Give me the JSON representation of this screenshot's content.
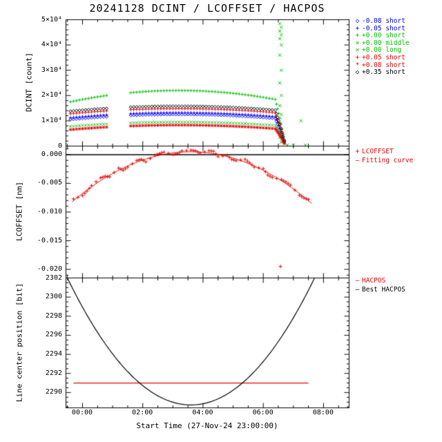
{
  "title": "20241128 DCINT / LCOFFSET / HACPOS",
  "x_axis": {
    "label": "Start Time (27-Nov-24 23:00:00)",
    "tick_labels": [
      "00:00",
      "02:00",
      "04:00",
      "06:00",
      "08:00"
    ],
    "tick_hours": [
      0,
      2,
      4,
      6,
      8
    ],
    "range_hours": [
      -0.55,
      8.85
    ]
  },
  "colors": {
    "blue": "#0000ff",
    "green": "#00c000",
    "red": "#e80000",
    "black": "#000000"
  },
  "chart_data": [
    {
      "type": "scatter",
      "ylabel": "DCINT [count]",
      "ylim": [
        0,
        50000
      ],
      "ytick_values": [
        0,
        10000,
        20000,
        30000,
        40000,
        50000
      ],
      "ytick_labels": [
        "0",
        "1×10⁴",
        "2×10⁴",
        "3×10⁴",
        "4×10⁴",
        "5×10⁴"
      ],
      "ytick_major": 10000,
      "ytick_minor": 2000,
      "x_default": [
        -0.4,
        0,
        0.4,
        0.8,
        1.6,
        2,
        2.4,
        2.8,
        3.2,
        3.6,
        4,
        4.4,
        4.8,
        5.2,
        5.6,
        6,
        6.4,
        6.55,
        6.7
      ],
      "series": [
        {
          "name": "-0.08 short",
          "color": "blue",
          "marker": "diamond",
          "densify": 3,
          "y": [
            10500,
            10920,
            11290,
            11610,
            12110,
            12280,
            12400,
            12480,
            12500,
            12480,
            12400,
            12280,
            12110,
            11880,
            11610,
            11290,
            10920,
            6500,
            1500
          ]
        },
        {
          "name": "-0.05 short",
          "color": "blue",
          "marker": "plus",
          "densify": 3,
          "y": [
            11200,
            11620,
            11990,
            12310,
            12810,
            12980,
            13100,
            13180,
            13200,
            13180,
            13100,
            12980,
            12810,
            12580,
            12310,
            11990,
            11620,
            7000,
            1800
          ]
        },
        {
          "name": "+0.00 short",
          "color": "green",
          "marker": "plus",
          "densify": 3,
          "y": [
            17500,
            18450,
            19280,
            20000,
            21110,
            21500,
            21780,
            21940,
            22000,
            21940,
            21780,
            21500,
            21110,
            20610,
            20000,
            19280,
            18450,
            11000,
            2500
          ]
        },
        {
          "name": "+0.00 middle",
          "color": "green",
          "marker": "cross",
          "densify": 0,
          "size": 2.8,
          "x": [
            6.55,
            6.6,
            6.55,
            6.6,
            6.55,
            6.6,
            6.55,
            6.6,
            6.55,
            6.6,
            6.55,
            6.6,
            6.55,
            6.6,
            6.55,
            6.6,
            6.8,
            7.0,
            7.25,
            7.4
          ],
          "y": [
            48500,
            47000,
            45500,
            44000,
            42500,
            40000,
            36000,
            30000,
            25000,
            20000,
            16000,
            12500,
            9000,
            6000,
            3500,
            1500,
            400,
            300,
            10000,
            350
          ]
        },
        {
          "name": "+0.00 long",
          "color": "green",
          "marker": "cross",
          "densify": 3,
          "y": [
            7800,
            8160,
            8470,
            8750,
            9170,
            9310,
            9420,
            9480,
            9500,
            9480,
            9420,
            9310,
            9170,
            8980,
            8750,
            8470,
            8160,
            5000,
            1200
          ]
        },
        {
          "name": "+0.05 short",
          "color": "red",
          "marker": "plus",
          "densify": 3,
          "y": [
            12800,
            13220,
            13590,
            13910,
            14410,
            14580,
            14700,
            14780,
            14800,
            14780,
            14700,
            14580,
            14410,
            14180,
            13910,
            13590,
            13220,
            8000,
            2000
          ]
        },
        {
          "name": "+0.08 short",
          "color": "red",
          "marker": "star",
          "densify": 3,
          "y": [
            6500,
            6880,
            7210,
            7500,
            7940,
            8100,
            8210,
            8280,
            8300,
            8280,
            8210,
            8100,
            7940,
            7740,
            7500,
            7210,
            6880,
            4200,
            1000
          ]
        },
        {
          "name": "+0.35 short",
          "color": "black",
          "marker": "diamond",
          "densify": 3,
          "y": [
            13800,
            14220,
            14590,
            14910,
            15410,
            15580,
            15700,
            15780,
            15800,
            15780,
            15700,
            15580,
            15410,
            15180,
            14910,
            14590,
            14220,
            8600,
            2100
          ]
        }
      ],
      "legend": [
        {
          "marker": "◇",
          "color": "blue",
          "label": "-0.08 short"
        },
        {
          "marker": "+",
          "color": "blue",
          "label": "-0.05 short"
        },
        {
          "marker": "+",
          "color": "green",
          "label": "+0.00 short"
        },
        {
          "marker": "×",
          "color": "green",
          "label": "+0.00 middle"
        },
        {
          "marker": "×",
          "color": "green",
          "label": "+0.00 long"
        },
        {
          "marker": "+",
          "color": "red",
          "label": "+0.05 short"
        },
        {
          "marker": "*",
          "color": "red",
          "label": "+0.08 short"
        },
        {
          "marker": "◇",
          "color": "black",
          "label": "+0.35 short"
        }
      ]
    },
    {
      "type": "scatter+line",
      "ylabel": "LCOFFSET [nm]",
      "ylim": [
        -0.0215,
        0.0015
      ],
      "ytick_values": [
        0,
        -0.005,
        -0.01,
        -0.015,
        -0.02
      ],
      "ytick_labels": [
        "0.000",
        "-0.005",
        "-0.010",
        "-0.015",
        "-0.020"
      ],
      "ytick_major": 0.005,
      "ytick_minor": 0.001,
      "series": [
        {
          "name": "zero line",
          "color": "black",
          "type": "hline",
          "y": 0,
          "t_range": [
            -0.55,
            8.85
          ],
          "width": 1.5
        },
        {
          "name": "LCOFFSET",
          "color": "red",
          "marker": "plus",
          "densify": 1,
          "maxgap": 0.4,
          "size": 2.5,
          "x": [
            -0.3,
            0,
            0.15,
            0.3,
            0.6,
            0.75,
            0.9,
            1.2,
            1.35,
            1.5,
            1.8,
            1.95,
            2.1,
            2.4,
            2.55,
            2.7,
            3.0,
            3.15,
            3.3,
            3.6,
            3.75,
            3.9,
            4.2,
            4.35,
            4.5,
            4.8,
            4.95,
            5.1,
            5.4,
            5.55,
            5.7,
            6.0,
            6.15,
            6.3,
            6.6,
            6.75,
            6.9,
            7.2,
            7.35,
            7.5,
            6.57
          ],
          "y": [
            -0.00772,
            -0.00716,
            -0.00637,
            -0.0054,
            -0.00404,
            -0.00375,
            -0.00388,
            -0.00233,
            -0.00273,
            -0.00217,
            -0.00101,
            -0.00082,
            -0.00126,
            -0.00011,
            0.00018,
            0.00045,
            0.0,
            0.00019,
            0.00065,
            0.0008,
            0.00069,
            0.00025,
            0.0007,
            0.00059,
            -0.00035,
            -0.00011,
            -0.00082,
            -0.00106,
            -0.00081,
            -0.00143,
            -0.00217,
            -0.00243,
            -0.00354,
            -0.00398,
            -0.00434,
            -0.00476,
            -0.0053,
            -0.00706,
            -0.00757,
            -0.00782,
            -0.0195
          ]
        },
        {
          "name": "Fitting curve",
          "color": "red",
          "type": "parabola",
          "t0": 3.6,
          "v0": 0.0005,
          "coef": -0.00056,
          "t_range": [
            -0.35,
            7.62
          ],
          "width": 1
        }
      ],
      "legend": [
        {
          "marker": "+",
          "color": "red",
          "label": "LCOFFSET"
        },
        {
          "marker": "—",
          "color": "red",
          "label": "Fitting curve"
        }
      ]
    },
    {
      "type": "line",
      "ylabel": "Line center position [bit]",
      "ylim": [
        2288.4,
        2302
      ],
      "ytick_values": [
        2290,
        2292,
        2294,
        2296,
        2298,
        2300,
        2302
      ],
      "ytick_labels": [
        "2290",
        "2292",
        "2294",
        "2296",
        "2298",
        "2300",
        "2302"
      ],
      "ytick_major": 2,
      "ytick_minor": 0.5,
      "series": [
        {
          "name": "HACPOS",
          "color": "red",
          "type": "hline",
          "y": 2291.0,
          "t_range": [
            -0.3,
            7.5
          ],
          "width": 1.2
        },
        {
          "name": "Best HACPOS",
          "color": "black",
          "type": "parabola",
          "t0": 3.6,
          "v0": 2288.7,
          "coef": 0.79,
          "t_range": [
            -0.5,
            7.72
          ],
          "width": 1.2
        }
      ],
      "legend": [
        {
          "marker": "—",
          "color": "red",
          "label": "HACPOS"
        },
        {
          "marker": "—",
          "color": "black",
          "label": "Best HACPOS"
        }
      ]
    }
  ]
}
